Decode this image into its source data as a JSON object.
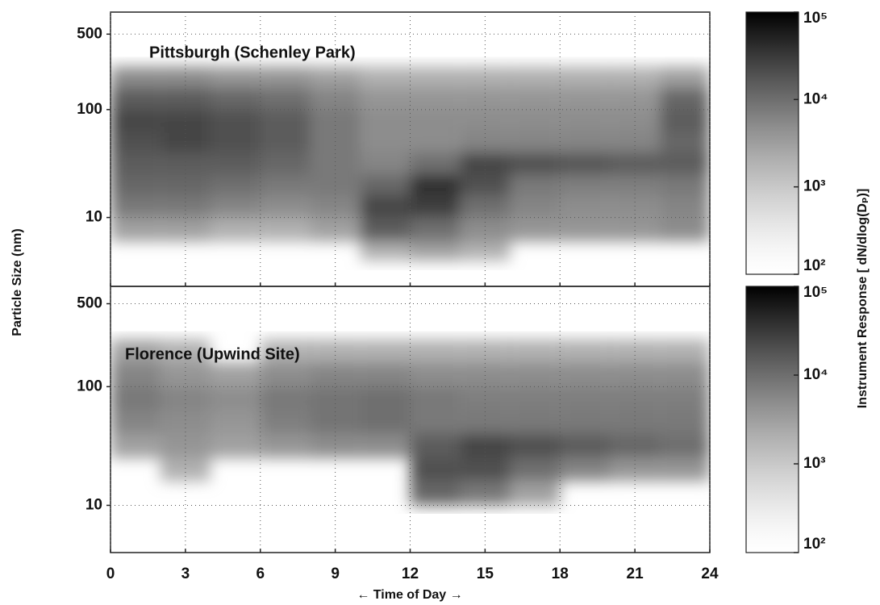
{
  "figure": {
    "xlabel": "← Time of Day →",
    "ylabel": "Particle Size (nm)",
    "colorbar_label": "Instrument Response [ dN/dlog(Dₚ)]"
  },
  "chart_data": [
    {
      "type": "heatmap",
      "title": "Pittsburgh (Schenley Park)",
      "xlim": [
        0,
        24
      ],
      "xticks": [
        0,
        3,
        6,
        9,
        12,
        15,
        18,
        21,
        24
      ],
      "ylim": [
        2.3,
        800
      ],
      "yticks": [
        10,
        100,
        500
      ],
      "log_y": true,
      "x_bins": [
        0,
        2,
        4,
        6,
        8,
        10,
        12,
        14,
        16,
        18,
        20,
        22,
        24
      ],
      "y_bins": [
        4,
        6,
        10,
        16,
        25,
        40,
        63,
        100,
        160,
        250
      ],
      "values": [
        [
          null,
          3000,
          8000,
          12000,
          15000,
          20000,
          25000,
          15000,
          5000
        ],
        [
          null,
          3000,
          8000,
          12000,
          15000,
          25000,
          25000,
          15000,
          5000
        ],
        [
          null,
          2000,
          6000,
          10000,
          15000,
          20000,
          20000,
          12000,
          4000
        ],
        [
          null,
          2000,
          5000,
          8000,
          12000,
          15000,
          15000,
          10000,
          4000
        ],
        [
          null,
          3000,
          6000,
          8000,
          8000,
          8000,
          8000,
          6000,
          3000
        ],
        [
          2000,
          15000,
          25000,
          12000,
          6000,
          5000,
          5000,
          4000,
          2000
        ],
        [
          3000,
          10000,
          30000,
          40000,
          10000,
          5000,
          5000,
          4000,
          2000
        ],
        [
          2000,
          5000,
          10000,
          20000,
          25000,
          6000,
          5000,
          4000,
          2000
        ],
        [
          null,
          4000,
          6000,
          8000,
          20000,
          6000,
          5000,
          4000,
          2000
        ],
        [
          null,
          4000,
          5000,
          7000,
          18000,
          6000,
          5000,
          4000,
          2000
        ],
        [
          null,
          4000,
          5000,
          7000,
          15000,
          6000,
          5000,
          4000,
          2000
        ],
        [
          null,
          5000,
          6000,
          8000,
          15000,
          12000,
          15000,
          12000,
          3000
        ]
      ],
      "clim": [
        100,
        100000
      ],
      "log_c": true,
      "cticks": [
        {
          "value": 100,
          "label": "10²"
        },
        {
          "value": 1000,
          "label": "10³"
        },
        {
          "value": 10000,
          "label": "10⁴"
        },
        {
          "value": 100000,
          "label": "10⁵"
        }
      ],
      "grid": true
    },
    {
      "type": "heatmap",
      "title": "Florence (Upwind Site)",
      "xlim": [
        0,
        24
      ],
      "xticks": [
        0,
        3,
        6,
        9,
        12,
        15,
        18,
        21,
        24
      ],
      "ylim": [
        4,
        700
      ],
      "yticks": [
        10,
        100,
        500
      ],
      "log_y": true,
      "x_bins": [
        0,
        2,
        4,
        6,
        8,
        10,
        12,
        14,
        16,
        18,
        20,
        22,
        24
      ],
      "y_bins": [
        4,
        6,
        10,
        16,
        25,
        40,
        63,
        100,
        160,
        250
      ],
      "values": [
        [
          null,
          null,
          null,
          null,
          3000,
          6000,
          8000,
          6000,
          3000
        ],
        [
          null,
          null,
          null,
          2000,
          4000,
          5000,
          6000,
          4000,
          2000
        ],
        [
          null,
          null,
          null,
          null,
          3000,
          4000,
          5000,
          3000,
          null
        ],
        [
          null,
          null,
          null,
          null,
          4000,
          7000,
          8000,
          5000,
          2000
        ],
        [
          null,
          null,
          null,
          null,
          5000,
          9000,
          9000,
          6000,
          2000
        ],
        [
          null,
          null,
          null,
          null,
          5000,
          10000,
          10000,
          6000,
          2000
        ],
        [
          null,
          null,
          12000,
          20000,
          15000,
          8000,
          8000,
          5000,
          2000
        ],
        [
          null,
          null,
          8000,
          20000,
          25000,
          8000,
          7000,
          5000,
          2000
        ],
        [
          null,
          null,
          3000,
          10000,
          20000,
          8000,
          7000,
          5000,
          2000
        ],
        [
          null,
          null,
          null,
          6000,
          15000,
          8000,
          7000,
          5000,
          2000
        ],
        [
          null,
          null,
          null,
          4000,
          12000,
          8000,
          7000,
          5000,
          2000
        ],
        [
          null,
          null,
          null,
          4000,
          10000,
          8000,
          7000,
          5000,
          2000
        ]
      ],
      "clim": [
        100,
        100000
      ],
      "log_c": true,
      "cticks": [
        {
          "value": 100,
          "label": "10²"
        },
        {
          "value": 1000,
          "label": "10³"
        },
        {
          "value": 10000,
          "label": "10⁴"
        },
        {
          "value": 100000,
          "label": "10⁵"
        }
      ],
      "grid": true
    }
  ]
}
